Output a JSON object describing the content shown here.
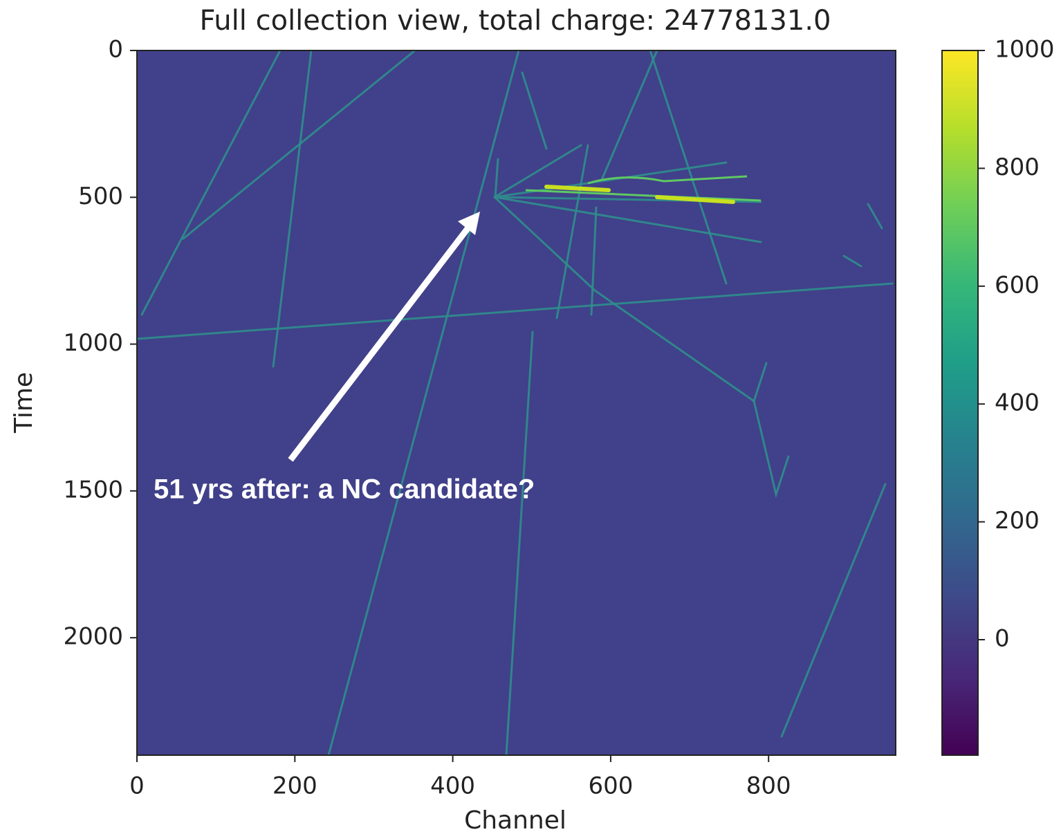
{
  "chart_data": {
    "type": "heatmap",
    "title": "Full collection view, total charge: 24778131.0",
    "xlabel": "Channel",
    "ylabel": "Time",
    "xlim": [
      0,
      961
    ],
    "xticks": [
      0,
      200,
      400,
      600,
      800
    ],
    "ylim": [
      0,
      2400
    ],
    "yticks": [
      0,
      500,
      1000,
      1500,
      2000
    ],
    "y_inverted": true,
    "colorbar": {
      "lim": [
        -196,
        1000
      ],
      "ticks": [
        0,
        200,
        400,
        600,
        800,
        1000
      ],
      "colormap": "viridis"
    },
    "annotation": {
      "text": "51 yrs after: a NC candidate?"
    }
  }
}
